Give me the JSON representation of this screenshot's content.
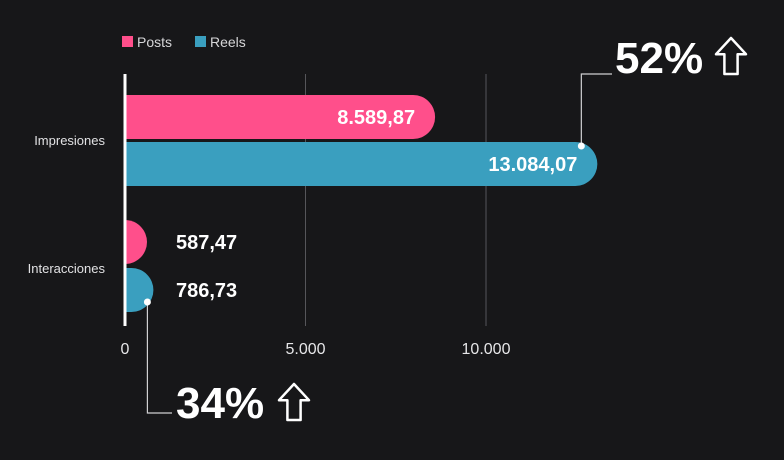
{
  "chart_data": {
    "type": "bar",
    "orientation": "horizontal",
    "categories": [
      "Impresiones",
      "Interacciones"
    ],
    "series": [
      {
        "name": "Posts",
        "color": "#ff4f8b",
        "values": [
          8589.87,
          587.47
        ],
        "labels": [
          "8.589,87",
          "587,47"
        ]
      },
      {
        "name": "Reels",
        "color": "#3a9fbf",
        "values": [
          13084.07,
          786.73
        ],
        "labels": [
          "13.084,07",
          "786,73"
        ]
      }
    ],
    "xlim": [
      0,
      13500
    ],
    "ticks": [
      {
        "value": 0,
        "label": "0"
      },
      {
        "value": 5000,
        "label": "5.000"
      },
      {
        "value": 10000,
        "label": "10.000"
      }
    ],
    "grid": true,
    "legend": "top-left",
    "annotations": [
      {
        "text": "52%",
        "icon": "arrow-up-outline-icon",
        "category": "Impresiones",
        "series": "Reels"
      },
      {
        "text": "34%",
        "icon": "arrow-up-outline-icon",
        "category": "Interacciones",
        "series": "Reels"
      }
    ]
  }
}
